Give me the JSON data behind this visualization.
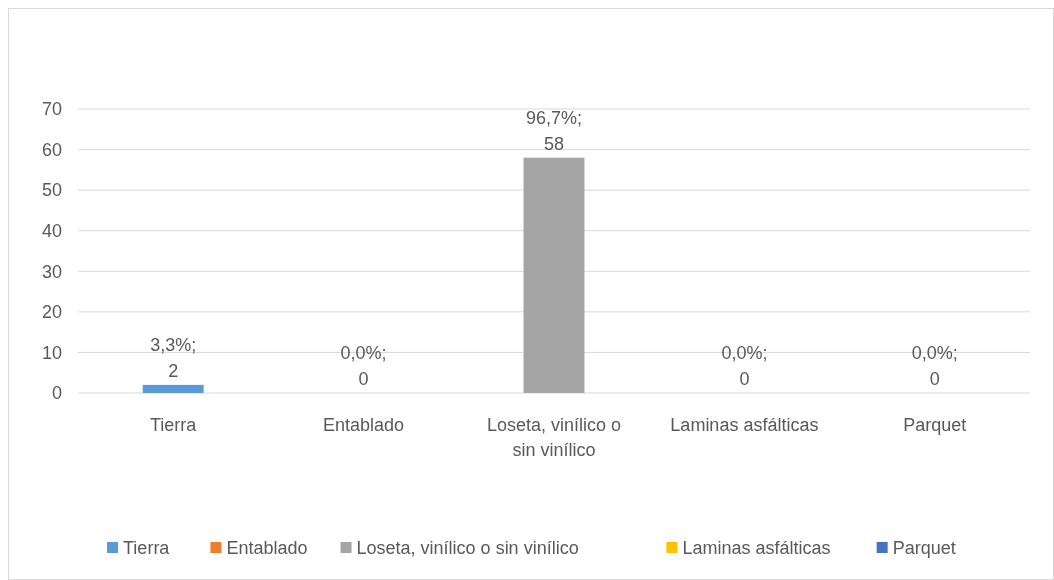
{
  "chart_data": {
    "type": "bar",
    "stacked": true,
    "categories": [
      "Tierra",
      "Entablado",
      "Loseta, vinílico o sin vinílico",
      "Laminas asfálticas",
      "Parquet"
    ],
    "series": [
      {
        "name": "Tierra",
        "color": "#5b9bd5",
        "values": [
          2,
          null,
          null,
          null,
          null
        ],
        "value_labels": [
          "3,3%;\n2",
          null,
          null,
          null,
          null
        ]
      },
      {
        "name": "Entablado",
        "color": "#ed7d31",
        "values": [
          null,
          0,
          null,
          null,
          null
        ],
        "value_labels": [
          null,
          "0,0%;\n0",
          null,
          null,
          null
        ]
      },
      {
        "name": "Loseta, vinílico o sin vinílico",
        "color": "#a5a5a5",
        "values": [
          null,
          null,
          58,
          null,
          null
        ],
        "value_labels": [
          null,
          null,
          "96,7%;\n58",
          null,
          null
        ]
      },
      {
        "name": "Laminas asfálticas",
        "color": "#ffc000",
        "values": [
          null,
          null,
          null,
          0,
          null
        ],
        "value_labels": [
          null,
          null,
          null,
          "0,0%;\n0",
          null
        ]
      },
      {
        "name": "Parquet",
        "color": "#4472c4",
        "values": [
          null,
          null,
          null,
          null,
          0
        ],
        "value_labels": [
          null,
          null,
          null,
          null,
          "0,0%;\n0"
        ]
      }
    ],
    "ylim": [
      0,
      70
    ],
    "yticks": [
      0,
      10,
      20,
      30,
      40,
      50,
      60,
      70
    ],
    "grid": "y",
    "legend": "bottom"
  }
}
